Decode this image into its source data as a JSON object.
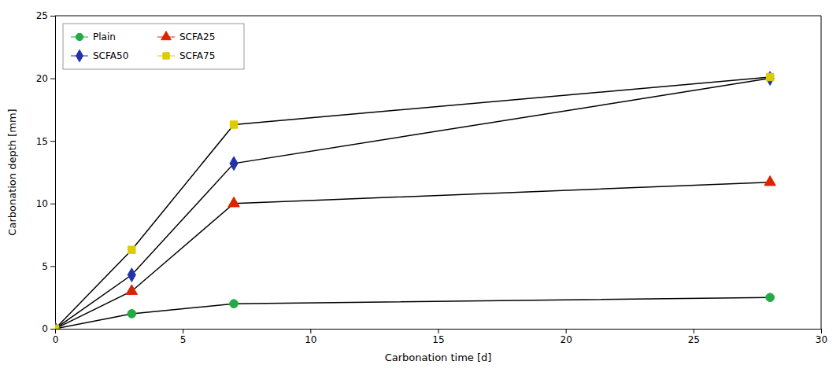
{
  "chart_data": {
    "type": "line",
    "xlabel": "Carbonation time [d]",
    "ylabel": "Carbonation depth [mm]",
    "x": [
      0,
      3,
      7,
      28
    ],
    "color": "black",
    "series": [
      {
        "name": "Plain",
        "color": "#22aa44",
        "marker": "circle",
        "values": [
          0,
          1.2,
          2.0,
          2.5
        ]
      },
      {
        "name": "SCFA25",
        "color": "#dd2200",
        "marker": "triangle",
        "values": [
          0,
          3.0,
          10.0,
          11.7
        ]
      },
      {
        "name": "SCFA50",
        "color": "#2233aa",
        "marker": "diamond",
        "values": [
          0,
          4.3,
          13.2,
          20.0
        ]
      },
      {
        "name": "SCFA75",
        "color": "#ddcc00",
        "marker": "square",
        "values": [
          0,
          6.3,
          16.3,
          20.1
        ]
      }
    ],
    "xlim": [
      0,
      30
    ],
    "ylim": [
      0,
      25
    ],
    "xticks": [
      0,
      5,
      10,
      15,
      20,
      25,
      30
    ],
    "yticks": [
      0,
      5,
      10,
      15,
      20,
      25
    ],
    "legend": "upper left",
    "grid": false
  }
}
